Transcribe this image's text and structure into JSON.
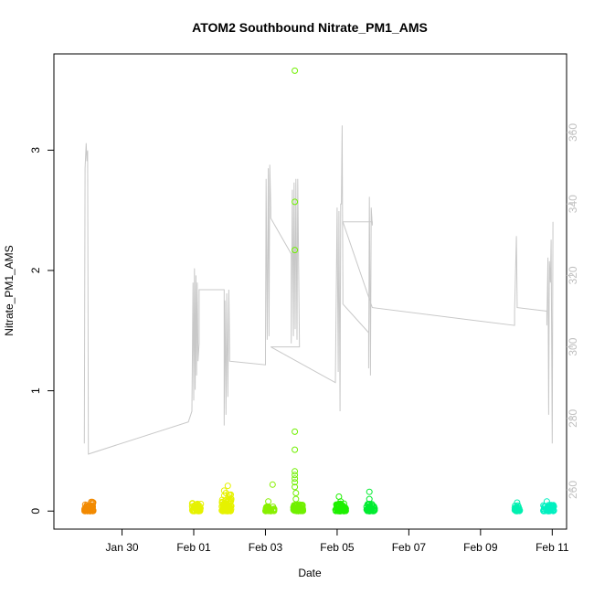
{
  "chart_data": {
    "type": "scatter",
    "title": "ATOM2 Southbound Nitrate_PM1_AMS",
    "xlabel": "Date",
    "ylabel": "Nitrate_PM1_AMS",
    "x_domain_days": [
      -2.9,
      11.4
    ],
    "x_ticks": [
      {
        "day": -1,
        "label": "Jan 30"
      },
      {
        "day": 1,
        "label": "Feb 01"
      },
      {
        "day": 3,
        "label": "Feb 03"
      },
      {
        "day": 5,
        "label": "Feb 05"
      },
      {
        "day": 7,
        "label": "Feb 07"
      },
      {
        "day": 9,
        "label": "Feb 09"
      },
      {
        "day": 11,
        "label": "Feb 11"
      }
    ],
    "ylim": [
      -0.15,
      3.8
    ],
    "y_ticks": [
      0,
      1,
      2,
      3
    ],
    "y2_label": "",
    "y2lim": [
      249,
      382
    ],
    "y2_ticks": [
      260,
      280,
      300,
      320,
      340,
      360
    ],
    "y2_color": "#c8c8c8",
    "scatter_groups": [
      {
        "color": "#f28a00",
        "day_start": -2.05,
        "day_end": -1.8,
        "n": 70,
        "max": 0.08,
        "extra": []
      },
      {
        "color": "#e6f200",
        "day_start": 0.95,
        "day_end": 1.2,
        "n": 60,
        "max": 0.07,
        "extra": []
      },
      {
        "color": "#e6f200",
        "day_start": 1.78,
        "day_end": 2.05,
        "n": 90,
        "max": 0.14,
        "extra": [
          [
            1.95,
            0.21
          ],
          [
            1.85,
            0.17
          ],
          [
            1.9,
            0.15
          ]
        ]
      },
      {
        "color": "#88f000",
        "day_start": 3.0,
        "day_end": 3.25,
        "n": 40,
        "max": 0.04,
        "extra": [
          [
            3.08,
            0.08
          ],
          [
            3.2,
            0.22
          ]
        ]
      },
      {
        "color": "#70f000",
        "day_start": 3.78,
        "day_end": 4.05,
        "n": 70,
        "max": 0.06,
        "extra": [
          [
            3.82,
            3.66
          ],
          [
            3.82,
            2.57
          ],
          [
            3.82,
            2.17
          ],
          [
            3.82,
            0.66
          ],
          [
            3.82,
            0.51
          ],
          [
            3.82,
            0.33
          ],
          [
            3.82,
            0.3
          ],
          [
            3.82,
            0.27
          ],
          [
            3.82,
            0.24
          ],
          [
            3.82,
            0.2
          ],
          [
            3.85,
            0.15
          ],
          [
            3.85,
            0.1
          ]
        ]
      },
      {
        "color": "#1ef000",
        "day_start": 4.95,
        "day_end": 5.25,
        "n": 70,
        "max": 0.07,
        "extra": [
          [
            5.05,
            0.12
          ],
          [
            5.1,
            0.08
          ]
        ]
      },
      {
        "color": "#00ec30",
        "day_start": 5.82,
        "day_end": 6.05,
        "n": 60,
        "max": 0.06,
        "extra": [
          [
            5.9,
            0.16
          ],
          [
            5.9,
            0.1
          ]
        ]
      },
      {
        "color": "#00f0b0",
        "day_start": 9.95,
        "day_end": 10.1,
        "n": 30,
        "max": 0.05,
        "extra": [
          [
            10.02,
            0.07
          ]
        ]
      },
      {
        "color": "#00f0c0",
        "day_start": 10.75,
        "day_end": 11.05,
        "n": 50,
        "max": 0.05,
        "extra": [
          [
            10.85,
            0.08
          ],
          [
            10.9,
            0.05
          ]
        ]
      }
    ],
    "gray_line_series": [
      [
        -2.05,
        273
      ],
      [
        -2.03,
        350
      ],
      [
        -2.0,
        357
      ],
      [
        -1.98,
        352
      ],
      [
        -1.96,
        355
      ],
      [
        -1.94,
        270
      ],
      [
        0.85,
        279
      ],
      [
        0.95,
        282
      ],
      [
        0.98,
        318
      ],
      [
        1.0,
        285
      ],
      [
        1.02,
        322
      ],
      [
        1.04,
        288
      ],
      [
        1.06,
        320
      ],
      [
        1.08,
        292
      ],
      [
        1.1,
        318
      ],
      [
        1.12,
        296
      ],
      [
        1.15,
        301
      ],
      [
        1.15,
        316
      ],
      [
        1.85,
        316
      ],
      [
        1.85,
        278
      ],
      [
        1.87,
        313
      ],
      [
        1.9,
        281
      ],
      [
        1.92,
        315
      ],
      [
        1.95,
        286
      ],
      [
        1.98,
        316
      ],
      [
        2.0,
        300
      ],
      [
        2.0,
        296
      ],
      [
        3.0,
        295
      ],
      [
        3.0,
        300
      ],
      [
        3.02,
        347
      ],
      [
        3.05,
        302
      ],
      [
        3.08,
        350
      ],
      [
        3.1,
        303
      ],
      [
        3.12,
        351
      ],
      [
        3.15,
        339
      ],
      [
        3.15,
        336
      ],
      [
        3.72,
        326
      ],
      [
        3.72,
        301
      ],
      [
        3.75,
        344
      ],
      [
        3.78,
        303
      ],
      [
        3.8,
        346
      ],
      [
        3.83,
        305
      ],
      [
        3.85,
        347
      ],
      [
        3.88,
        302
      ],
      [
        3.9,
        347
      ],
      [
        3.95,
        300
      ],
      [
        3.95,
        300
      ],
      [
        3.15,
        300
      ],
      [
        4.95,
        290
      ],
      [
        5.0,
        339
      ],
      [
        5.03,
        293
      ],
      [
        5.05,
        338
      ],
      [
        5.08,
        282
      ],
      [
        5.1,
        340
      ],
      [
        5.12,
        340
      ],
      [
        5.14,
        362
      ],
      [
        5.16,
        316
      ],
      [
        5.16,
        312
      ],
      [
        5.88,
        304
      ],
      [
        5.88,
        294
      ],
      [
        5.9,
        342
      ],
      [
        5.93,
        292
      ],
      [
        5.95,
        339
      ],
      [
        5.98,
        334
      ],
      [
        5.98,
        335
      ],
      [
        5.16,
        335
      ],
      [
        5.98,
        311
      ],
      [
        9.95,
        306
      ],
      [
        9.95,
        310
      ],
      [
        10.0,
        331
      ],
      [
        10.02,
        312
      ],
      [
        10.02,
        311
      ],
      [
        10.85,
        310
      ],
      [
        10.85,
        306
      ],
      [
        10.88,
        325
      ],
      [
        10.9,
        281
      ],
      [
        10.92,
        324
      ],
      [
        10.95,
        318
      ],
      [
        10.97,
        330
      ],
      [
        11.0,
        273
      ],
      [
        11.02,
        335
      ]
    ]
  }
}
